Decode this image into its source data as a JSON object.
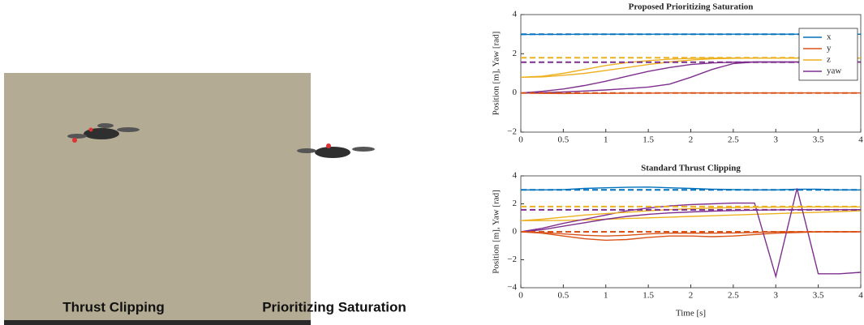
{
  "photo": {
    "captions": [
      "Thrust Clipping",
      "Prioritizing Saturation"
    ]
  },
  "chart_data": [
    {
      "type": "line",
      "title": "Proposed Prioritizing Saturation",
      "ylabel": "Position [m], Yaw [rad]",
      "x": [
        0,
        0.25,
        0.5,
        0.75,
        1,
        1.25,
        1.5,
        1.75,
        2,
        2.25,
        2.5,
        2.75,
        3,
        3.25,
        3.5,
        3.75,
        4
      ],
      "xlim": [
        0,
        4
      ],
      "xticks": [
        0,
        0.5,
        1,
        1.5,
        2,
        2.5,
        3,
        3.5,
        4
      ],
      "ylim": [
        -2,
        4
      ],
      "yticks": [
        {
          "value": -2,
          "label": "−2"
        },
        0,
        2,
        4
      ],
      "legend": "upper right",
      "series": [
        {
          "name": "x",
          "color": "#0072BD",
          "values": [
            2.98,
            2.99,
            2.99,
            3.0,
            3.0,
            3.0,
            3.0,
            3.0,
            3.0,
            3.0,
            3.0,
            3.0,
            3.0,
            3.0,
            3.0,
            3.0,
            3.0
          ]
        },
        {
          "name": "y",
          "color": "#D95319",
          "values": [
            0,
            -0.02,
            -0.03,
            -0.02,
            -0.02,
            -0.01,
            -0.01,
            0,
            0,
            0,
            0,
            0,
            0,
            0,
            0,
            0,
            0
          ]
        },
        {
          "name": "z",
          "color": "#EDB120",
          "values": [
            0.8,
            0.82,
            0.9,
            1.0,
            1.15,
            1.3,
            1.45,
            1.58,
            1.68,
            1.74,
            1.77,
            1.78,
            1.78,
            1.78,
            1.78,
            1.78,
            1.78
          ]
        },
        {
          "name": "yaw",
          "color": "#7E2F8E",
          "values": [
            0,
            0.08,
            0.2,
            0.38,
            0.6,
            0.85,
            1.1,
            1.3,
            1.45,
            1.53,
            1.57,
            1.58,
            1.58,
            1.58,
            1.58,
            1.58,
            1.58
          ]
        },
        {
          "color": "#7E2F8E",
          "values": [
            0,
            0.02,
            0.05,
            0.1,
            0.15,
            0.22,
            0.3,
            0.45,
            0.8,
            1.2,
            1.5,
            1.58,
            1.58,
            1.58,
            1.58,
            1.58,
            1.58
          ]
        },
        {
          "color": "#EDB120",
          "values": [
            0.8,
            0.85,
            1.0,
            1.2,
            1.4,
            1.55,
            1.65,
            1.72,
            1.76,
            1.78,
            1.78,
            1.78,
            1.78,
            1.78,
            1.78,
            1.78,
            1.78
          ]
        },
        {
          "color": "#0072BD",
          "dashed": true,
          "x": [
            0,
            4
          ],
          "values": [
            3,
            3
          ]
        },
        {
          "color": "#D95319",
          "dashed": true,
          "x": [
            0,
            4
          ],
          "values": [
            0,
            0
          ]
        },
        {
          "color": "#EDB120",
          "dashed": true,
          "x": [
            0,
            4
          ],
          "values": [
            1.8,
            1.8
          ]
        },
        {
          "color": "#7E2F8E",
          "dashed": true,
          "x": [
            0,
            4
          ],
          "values": [
            1.57,
            1.57
          ]
        }
      ]
    },
    {
      "type": "line",
      "title": "Standard Thrust Clipping",
      "ylabel": "Position [m], Yaw [rad]",
      "xlabel": "Time [s]",
      "x": [
        0,
        0.25,
        0.5,
        0.75,
        1,
        1.25,
        1.5,
        1.75,
        2,
        2.25,
        2.5,
        2.75,
        3,
        3.25,
        3.5,
        3.75,
        4
      ],
      "xlim": [
        0,
        4
      ],
      "xticks": [
        0,
        0.5,
        1,
        1.5,
        2,
        2.5,
        3,
        3.5,
        4
      ],
      "ylim": [
        -4,
        4
      ],
      "yticks": [
        {
          "value": -4,
          "label": "−4"
        },
        {
          "value": -2,
          "label": "−2"
        },
        0,
        2,
        4
      ],
      "series": [
        {
          "name": "x",
          "color": "#0072BD",
          "values": [
            3.0,
            3.0,
            3.02,
            3.1,
            3.15,
            3.18,
            3.2,
            3.15,
            3.1,
            3.05,
            3.02,
            3.0,
            3.0,
            3.05,
            3.05,
            3.0,
            3.0
          ]
        },
        {
          "name": "y",
          "color": "#D95319",
          "values": [
            0,
            -0.1,
            -0.3,
            -0.5,
            -0.6,
            -0.55,
            -0.4,
            -0.3,
            -0.3,
            -0.35,
            -0.3,
            -0.2,
            -0.1,
            -0.05,
            0,
            0,
            0
          ]
        },
        {
          "name": "z",
          "color": "#EDB120",
          "values": [
            0.8,
            0.8,
            0.82,
            0.85,
            0.9,
            0.95,
            1.0,
            1.05,
            1.1,
            1.15,
            1.2,
            1.25,
            1.3,
            1.35,
            1.4,
            1.45,
            1.5
          ]
        },
        {
          "name": "yaw",
          "color": "#7E2F8E",
          "values": [
            0,
            0.15,
            0.4,
            0.65,
            0.9,
            1.1,
            1.25,
            1.35,
            1.42,
            1.48,
            1.52,
            1.55,
            1.57,
            1.58,
            1.58,
            1.58,
            1.58
          ]
        },
        {
          "color": "#7E2F8E",
          "values": [
            0,
            0.25,
            0.6,
            0.9,
            1.2,
            1.5,
            1.7,
            1.85,
            1.95,
            2.0,
            2.05,
            2.05,
            -3.2,
            3.1,
            -3.0,
            -3.0,
            -2.9
          ]
        },
        {
          "color": "#EDB120",
          "values": [
            0.8,
            0.9,
            1.05,
            1.2,
            1.3,
            1.4,
            1.5,
            1.58,
            1.65,
            1.7,
            1.73,
            1.75,
            1.76,
            1.77,
            1.78,
            1.78,
            1.78
          ]
        },
        {
          "color": "#D95319",
          "values": [
            0,
            -0.05,
            -0.15,
            -0.25,
            -0.3,
            -0.25,
            -0.15,
            -0.1,
            -0.1,
            -0.1,
            -0.08,
            -0.05,
            0,
            0,
            0,
            0,
            0
          ]
        },
        {
          "color": "#0072BD",
          "dashed": true,
          "x": [
            0,
            4
          ],
          "values": [
            3,
            3
          ]
        },
        {
          "color": "#D95319",
          "dashed": true,
          "x": [
            0,
            4
          ],
          "values": [
            0,
            0
          ]
        },
        {
          "color": "#EDB120",
          "dashed": true,
          "x": [
            0,
            4
          ],
          "values": [
            1.8,
            1.8
          ]
        },
        {
          "color": "#7E2F8E",
          "dashed": true,
          "x": [
            0,
            4
          ],
          "values": [
            1.57,
            1.57
          ]
        }
      ]
    }
  ]
}
